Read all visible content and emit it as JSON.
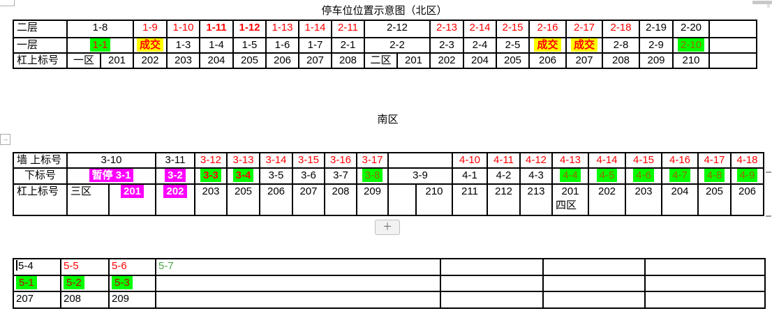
{
  "titles": {
    "north": "停车位位置示意图（北区）",
    "south": "南区"
  },
  "controls": {
    "insert_button": "＋",
    "resize_handle_icon": "→"
  },
  "colors": {
    "red": "#FF0000",
    "dkred": "#C00000",
    "olive": "#9C6500",
    "grn": "#4CA64C",
    "wht": "#FFFFFF",
    "black": "#000000",
    "hl_green": "#00FF00",
    "hl_yellow": "#FFFF00",
    "hl_magenta": "#FF00FF"
  },
  "tables": {
    "north": {
      "row_labels": [
        "二层",
        "一层",
        "杠上标号"
      ],
      "rows": [
        [
          {
            "t": "二层",
            "a": "l"
          },
          {
            "t": "1-8",
            "s": 2
          },
          {
            "t": "1-9",
            "c": "red"
          },
          {
            "t": "1-10",
            "c": "red"
          },
          {
            "t": "1-11",
            "c": "red",
            "b": 1
          },
          {
            "t": "1-12",
            "c": "red",
            "b": 1
          },
          {
            "t": "1-13",
            "c": "red"
          },
          {
            "t": "1-14",
            "c": "red"
          },
          {
            "t": "2-11",
            "c": "red"
          },
          {
            "t": "2-12",
            "s": 2
          },
          {
            "t": "2-13",
            "c": "red"
          },
          {
            "t": "2-14",
            "c": "red"
          },
          {
            "t": "2-15",
            "c": "red"
          },
          {
            "t": "2-16",
            "c": "red"
          },
          {
            "t": "2-17",
            "c": "red"
          },
          {
            "t": "2-18",
            "c": "red"
          },
          {
            "t": "2-19"
          },
          {
            "t": "2-20"
          },
          {
            "t": ""
          }
        ],
        [
          {
            "t": "一层",
            "a": "l"
          },
          {
            "t": "1-1",
            "s": 2,
            "c": "red",
            "h": "g"
          },
          {
            "t": "成交",
            "c": "red",
            "b": 1,
            "h": "y"
          },
          {
            "t": "1-3"
          },
          {
            "t": "1-4"
          },
          {
            "t": "1-5"
          },
          {
            "t": "1-6"
          },
          {
            "t": "1-7"
          },
          {
            "t": "2-1"
          },
          {
            "t": "2-2",
            "s": 2
          },
          {
            "t": "2-3"
          },
          {
            "t": "2-4"
          },
          {
            "t": "2-5"
          },
          {
            "t": "成交",
            "c": "red",
            "b": 1,
            "h": "y"
          },
          {
            "t": "成交",
            "c": "red",
            "b": 1,
            "h": "y"
          },
          {
            "t": "2-8"
          },
          {
            "t": "2-9"
          },
          {
            "t": "2-10",
            "c": "olive",
            "h": "g"
          },
          {
            "t": ""
          }
        ],
        [
          {
            "t": "杠上标号",
            "a": "l"
          },
          {
            "t": "一区"
          },
          {
            "t": "201"
          },
          {
            "t": "202"
          },
          {
            "t": "203"
          },
          {
            "t": "204"
          },
          {
            "t": "205"
          },
          {
            "t": "206"
          },
          {
            "t": "207"
          },
          {
            "t": "208"
          },
          {
            "t": "二区"
          },
          {
            "t": "201"
          },
          {
            "t": "202"
          },
          {
            "t": "204"
          },
          {
            "t": "205"
          },
          {
            "t": "206"
          },
          {
            "t": "207"
          },
          {
            "t": "208"
          },
          {
            "t": "209"
          },
          {
            "t": "210"
          },
          {
            "t": ""
          }
        ]
      ]
    },
    "south": {
      "row_labels": [
        "墙 上标号",
        "下标号",
        "杠上标号"
      ],
      "rows": [
        [
          {
            "t": "墙 上标号",
            "a": "l"
          },
          {
            "t": "3-10",
            "s": 2
          },
          {
            "t": "3-11"
          },
          {
            "t": "3-12",
            "c": "red"
          },
          {
            "t": "3-13",
            "c": "red"
          },
          {
            "t": "3-14",
            "c": "red"
          },
          {
            "t": "3-15",
            "c": "red"
          },
          {
            "t": "3-16",
            "c": "red"
          },
          {
            "t": "3-17",
            "c": "red"
          },
          {
            "t": "",
            "s": 2
          },
          {
            "t": "4-10",
            "c": "red"
          },
          {
            "t": "4-11",
            "c": "red"
          },
          {
            "t": "4-12",
            "c": "red"
          },
          {
            "t": "4-13",
            "c": "red"
          },
          {
            "t": "4-14",
            "c": "red"
          },
          {
            "t": "4-15",
            "c": "red"
          },
          {
            "t": "4-16",
            "c": "red"
          },
          {
            "t": "4-17",
            "c": "red"
          },
          {
            "t": "4-18",
            "c": "red"
          }
        ],
        [
          {
            "t": "下标号"
          },
          {
            "t": "暂停 3-1",
            "s": 2,
            "c": "wht",
            "b": 1,
            "h": "m"
          },
          {
            "t": "3-2",
            "c": "wht",
            "b": 1,
            "h": "m"
          },
          {
            "t": "3-3",
            "c": "red",
            "b": 1,
            "h": "g"
          },
          {
            "t": "3-4",
            "c": "red",
            "b": 1,
            "h": "g"
          },
          {
            "t": "3-5"
          },
          {
            "t": "3-6"
          },
          {
            "t": "3-7"
          },
          {
            "t": "3-8",
            "c": "olive",
            "h": "g"
          },
          {
            "t": "3-9",
            "s": 2
          },
          {
            "t": "4-1"
          },
          {
            "t": "4-2"
          },
          {
            "t": "4-3"
          },
          {
            "t": "4-4",
            "c": "olive",
            "h": "g"
          },
          {
            "t": "4-5",
            "c": "olive",
            "h": "g"
          },
          {
            "t": "4-6",
            "c": "olive",
            "h": "g"
          },
          {
            "t": "4-7",
            "c": "olive",
            "h": "g"
          },
          {
            "t": "4-8",
            "c": "olive",
            "h": "g"
          },
          {
            "t": "4-9",
            "c": "olive",
            "h": "g"
          }
        ],
        [
          {
            "t": "杠上标号",
            "a": "l"
          },
          {
            "t": "三区",
            "a": "l"
          },
          {
            "t": "201",
            "c": "wht",
            "b": 1,
            "h": "m"
          },
          {
            "t": "202",
            "c": "wht",
            "b": 1,
            "h": "m"
          },
          {
            "t": "203"
          },
          {
            "t": "205"
          },
          {
            "t": "206"
          },
          {
            "t": "207"
          },
          {
            "t": "208"
          },
          {
            "t": "209"
          },
          {
            "t": ""
          },
          {
            "t": "210"
          },
          {
            "t": "211"
          },
          {
            "t": "212"
          },
          {
            "t": "213"
          },
          {
            "t": "201",
            "l2": "四区"
          },
          {
            "t": "202"
          },
          {
            "t": "203"
          },
          {
            "t": "204"
          },
          {
            "t": "205"
          },
          {
            "t": "206"
          }
        ]
      ]
    },
    "annex": {
      "rows": [
        [
          {
            "t": "5-4",
            "caret": 1
          },
          {
            "t": "5-5",
            "c": "red"
          },
          {
            "t": "5-6",
            "c": "red"
          },
          {
            "t": "5-7",
            "c": "grn"
          },
          {
            "t": ""
          },
          {
            "t": ""
          },
          {
            "t": ""
          }
        ],
        [
          {
            "t": "5-1",
            "c": "dkred",
            "h": "g"
          },
          {
            "t": "5-2",
            "c": "dkred",
            "h": "g"
          },
          {
            "t": "5-3",
            "c": "dkred",
            "h": "g"
          },
          {
            "t": ""
          },
          {
            "t": ""
          },
          {
            "t": ""
          },
          {
            "t": ""
          }
        ],
        [
          {
            "t": "207"
          },
          {
            "t": "208"
          },
          {
            "t": "209"
          },
          {
            "t": ""
          },
          {
            "t": ""
          },
          {
            "t": ""
          },
          {
            "t": ""
          }
        ]
      ]
    }
  }
}
